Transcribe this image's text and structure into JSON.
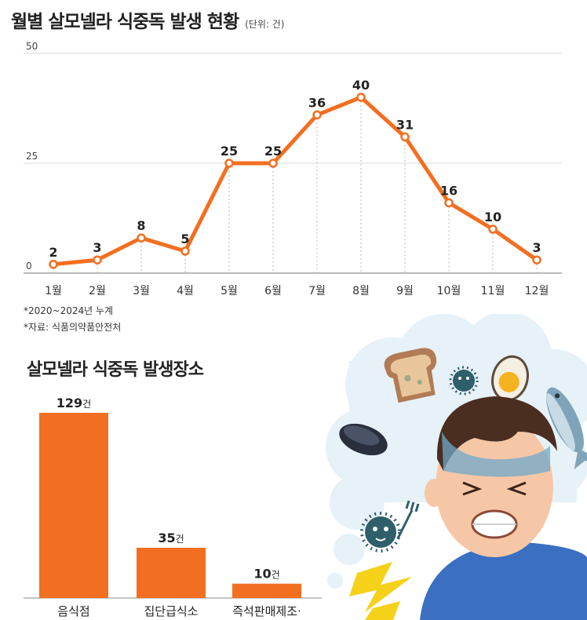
{
  "line_section": {
    "title": "월별 살모넬라 식중독 발생 현황",
    "unit": "(단위: 건)",
    "note_period": "*2020~2024년 누계",
    "note_source": "*자료: 식품의약품안전처"
  },
  "bar_section": {
    "title": "살모넬라 식중독 발생장소"
  },
  "chart_data": [
    {
      "type": "line",
      "title": "월별 살모넬라 식중독 발생 현황",
      "unit": "(단위: 건)",
      "x": [
        "1월",
        "2월",
        "3월",
        "4월",
        "5월",
        "6월",
        "7월",
        "8월",
        "9월",
        "10월",
        "11월",
        "12월"
      ],
      "series": [
        {
          "values": [
            2,
            3,
            8,
            5,
            25,
            25,
            36,
            40,
            31,
            16,
            10,
            3
          ]
        }
      ],
      "ylim": [
        0,
        50
      ],
      "yticks": [
        "0",
        "25",
        "50"
      ],
      "grid": true,
      "color": "#f26f21"
    },
    {
      "type": "bar",
      "title": "살모넬라 식중독 발생장소",
      "categories": [
        "음식점",
        "집단급식소",
        "즉석판매제조·"
      ],
      "values": [
        129,
        35,
        10
      ],
      "value_suffix": "건",
      "color": "#f26f21"
    }
  ],
  "illustration": {
    "icons": [
      "bread-icon",
      "germ-icon",
      "egg-icon",
      "fish-icon",
      "mussel-icon",
      "germ-with-fork-icon",
      "lightning-icon",
      "sick-boy-icon"
    ]
  }
}
